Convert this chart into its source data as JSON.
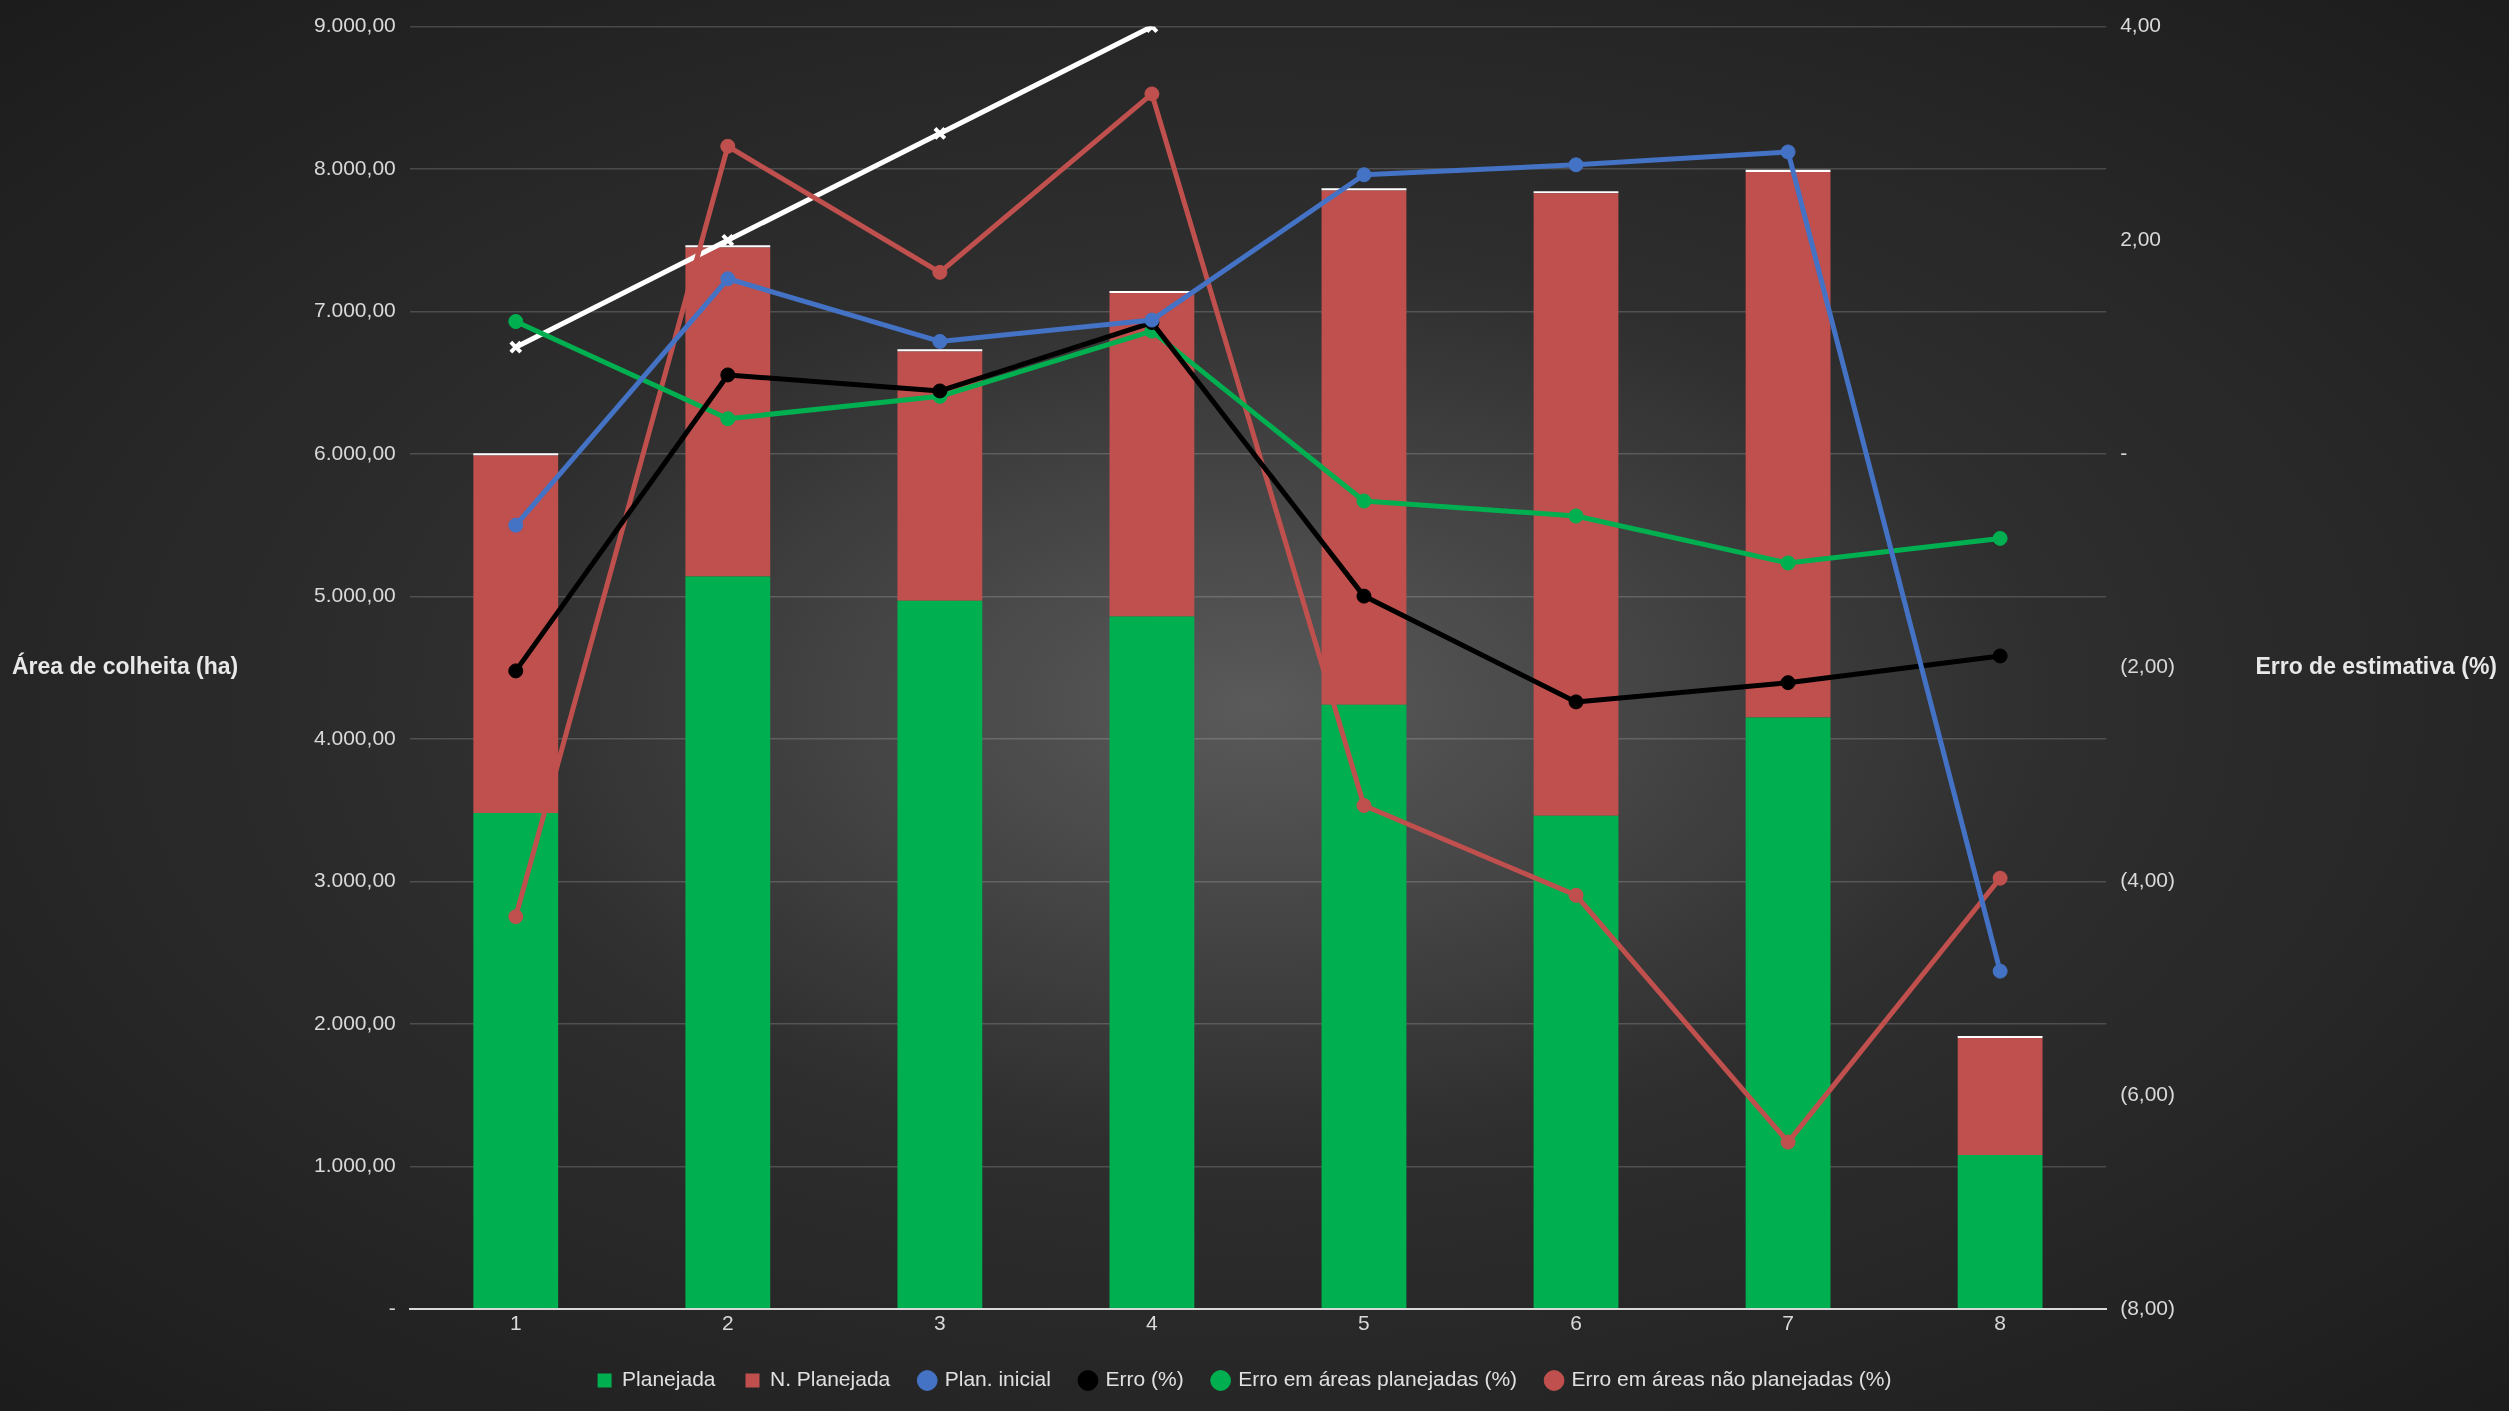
{
  "chart_data": {
    "type": "bar",
    "xlabel": null,
    "ylabel": "Área de colheita (ha)",
    "y2label": "Erro de estimativa (%)",
    "categories": [
      "1",
      "2",
      "3",
      "4",
      "5",
      "6",
      "7",
      "8"
    ],
    "stacked": true,
    "grid": "y",
    "legend": "bottom",
    "ylim": [
      0,
      9000
    ],
    "yticks": [
      {
        "value": 0,
        "label": "-"
      },
      {
        "value": 1000,
        "label": "1.000,00"
      },
      {
        "value": 2000,
        "label": "2.000,00"
      },
      {
        "value": 3000,
        "label": "3.000,00"
      },
      {
        "value": 4000,
        "label": "4.000,00"
      },
      {
        "value": 5000,
        "label": "5.000,00"
      },
      {
        "value": 6000,
        "label": "6.000,00"
      },
      {
        "value": 7000,
        "label": "7.000,00"
      },
      {
        "value": 8000,
        "label": "8.000,00"
      },
      {
        "value": 9000,
        "label": "9.000,00"
      }
    ],
    "y2lim": [
      -8,
      4
    ],
    "y2ticks": [
      {
        "value": -8,
        "label": "(8,00)"
      },
      {
        "value": -6,
        "label": "(6,00)"
      },
      {
        "value": -4,
        "label": "(4,00)"
      },
      {
        "value": -2,
        "label": "(2,00)"
      },
      {
        "value": 0,
        "label": "-"
      },
      {
        "value": 2,
        "label": "2,00"
      },
      {
        "value": 4,
        "label": "4,00"
      }
    ],
    "series": [
      {
        "name": "Planejada",
        "color": "#00b050",
        "values": [
          3480,
          5140,
          4970,
          4860,
          4240,
          3460,
          4150,
          1080
        ]
      },
      {
        "name": "N. Planejada",
        "color": "#c0504d",
        "values": [
          2510,
          2310,
          1750,
          2270,
          3610,
          4370,
          3830,
          820
        ]
      },
      {
        "color": "#ffffff",
        "values": [
          15,
          15,
          15,
          15,
          15,
          15,
          15,
          15
        ]
      },
      {
        "name": "Plan. inicial",
        "type": "line",
        "color": "#4472c4",
        "marker": "circle",
        "values": [
          5500,
          7230,
          6790,
          6940,
          7960,
          8030,
          8120,
          2370
        ]
      },
      {
        "name": "Erro (%)",
        "type": "line",
        "axis": "y2",
        "color": "#000000",
        "marker": "circle",
        "values": [
          -2.03,
          0.74,
          0.59,
          1.23,
          -1.33,
          -2.32,
          -2.14,
          -1.89
        ]
      },
      {
        "name": "Erro em áreas planejadas (%)",
        "type": "line",
        "axis": "y2",
        "color": "#00b050",
        "marker": "circle",
        "values": [
          1.24,
          0.33,
          0.54,
          1.15,
          -0.44,
          -0.58,
          -1.02,
          -0.79
        ]
      },
      {
        "name": "Erro em áreas não planejadas (%)",
        "type": "line",
        "axis": "y2",
        "color": "#c0504d",
        "marker": "circle",
        "values": [
          -4.33,
          2.88,
          1.7,
          3.37,
          -3.29,
          -4.13,
          -6.44,
          -3.97
        ]
      },
      {
        "type": "line",
        "color": "#ffffff",
        "marker": "cross",
        "values": [
          6750,
          7500,
          8250,
          9000,
          null,
          null,
          null,
          null
        ]
      }
    ]
  }
}
